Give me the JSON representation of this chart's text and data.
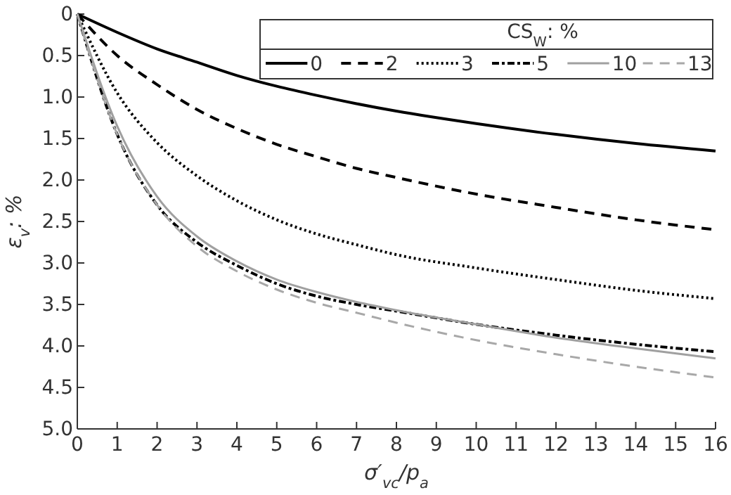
{
  "chart_data": {
    "type": "line",
    "xlabel": "σ′$_{vc}$/p$_{a}$",
    "ylabel": "ε$_{v}$: %",
    "legend_title": "CS$_{W}$: %",
    "legend": "top right",
    "grid": false,
    "marker": "none",
    "x": [
      0,
      1,
      2,
      3,
      4,
      5,
      6,
      7,
      8,
      10,
      12,
      14,
      16
    ],
    "xlim": [
      0,
      16
    ],
    "xticks": [
      0,
      1,
      2,
      3,
      4,
      5,
      6,
      7,
      8,
      9,
      10,
      11,
      12,
      13,
      14,
      15,
      16
    ],
    "ylim": [
      5,
      0
    ],
    "yticks": [
      0,
      {
        "value": 0.5,
        "label": "0.5"
      },
      {
        "value": 1,
        "label": "1.0"
      },
      {
        "value": 1.5,
        "label": "1.5"
      },
      {
        "value": 2,
        "label": "2.0"
      },
      {
        "value": 2.5,
        "label": "2.5"
      },
      {
        "value": 3,
        "label": "3.0"
      },
      {
        "value": 3.5,
        "label": "3.5"
      },
      {
        "value": 4,
        "label": "4.0"
      },
      {
        "value": 4.5,
        "label": "4.5"
      },
      {
        "value": 5,
        "label": "5.0"
      }
    ],
    "series": [
      {
        "name": "0",
        "color": "#000000",
        "line_style": "solid",
        "values": [
          0,
          0.22,
          0.42,
          0.58,
          0.74,
          0.87,
          0.98,
          1.08,
          1.17,
          1.32,
          1.45,
          1.56,
          1.65
        ]
      },
      {
        "name": "2",
        "color": "#000000",
        "line_style": "dashed",
        "values": [
          0,
          0.5,
          0.85,
          1.15,
          1.38,
          1.57,
          1.72,
          1.86,
          1.97,
          2.17,
          2.33,
          2.48,
          2.6
        ]
      },
      {
        "name": "3",
        "color": "#000000",
        "line_style": "dotted",
        "values": [
          0,
          0.95,
          1.55,
          1.95,
          2.25,
          2.48,
          2.65,
          2.78,
          2.9,
          3.06,
          3.2,
          3.33,
          3.43
        ]
      },
      {
        "name": "5",
        "color": "#000000",
        "line_style": "dashdot",
        "values": [
          0,
          1.45,
          2.3,
          2.75,
          3.03,
          3.25,
          3.4,
          3.5,
          3.58,
          3.74,
          3.87,
          3.98,
          4.07
        ]
      },
      {
        "name": "10",
        "color": "#a0a0a0",
        "line_style": "solid",
        "values": [
          0,
          1.35,
          2.2,
          2.68,
          2.98,
          3.2,
          3.35,
          3.47,
          3.57,
          3.74,
          3.9,
          4.03,
          4.15
        ]
      },
      {
        "name": "13",
        "color": "#a8a8a8",
        "line_style": "dashed",
        "values": [
          0,
          1.45,
          2.3,
          2.8,
          3.1,
          3.32,
          3.48,
          3.6,
          3.72,
          3.93,
          4.1,
          4.25,
          4.38
        ]
      }
    ]
  }
}
